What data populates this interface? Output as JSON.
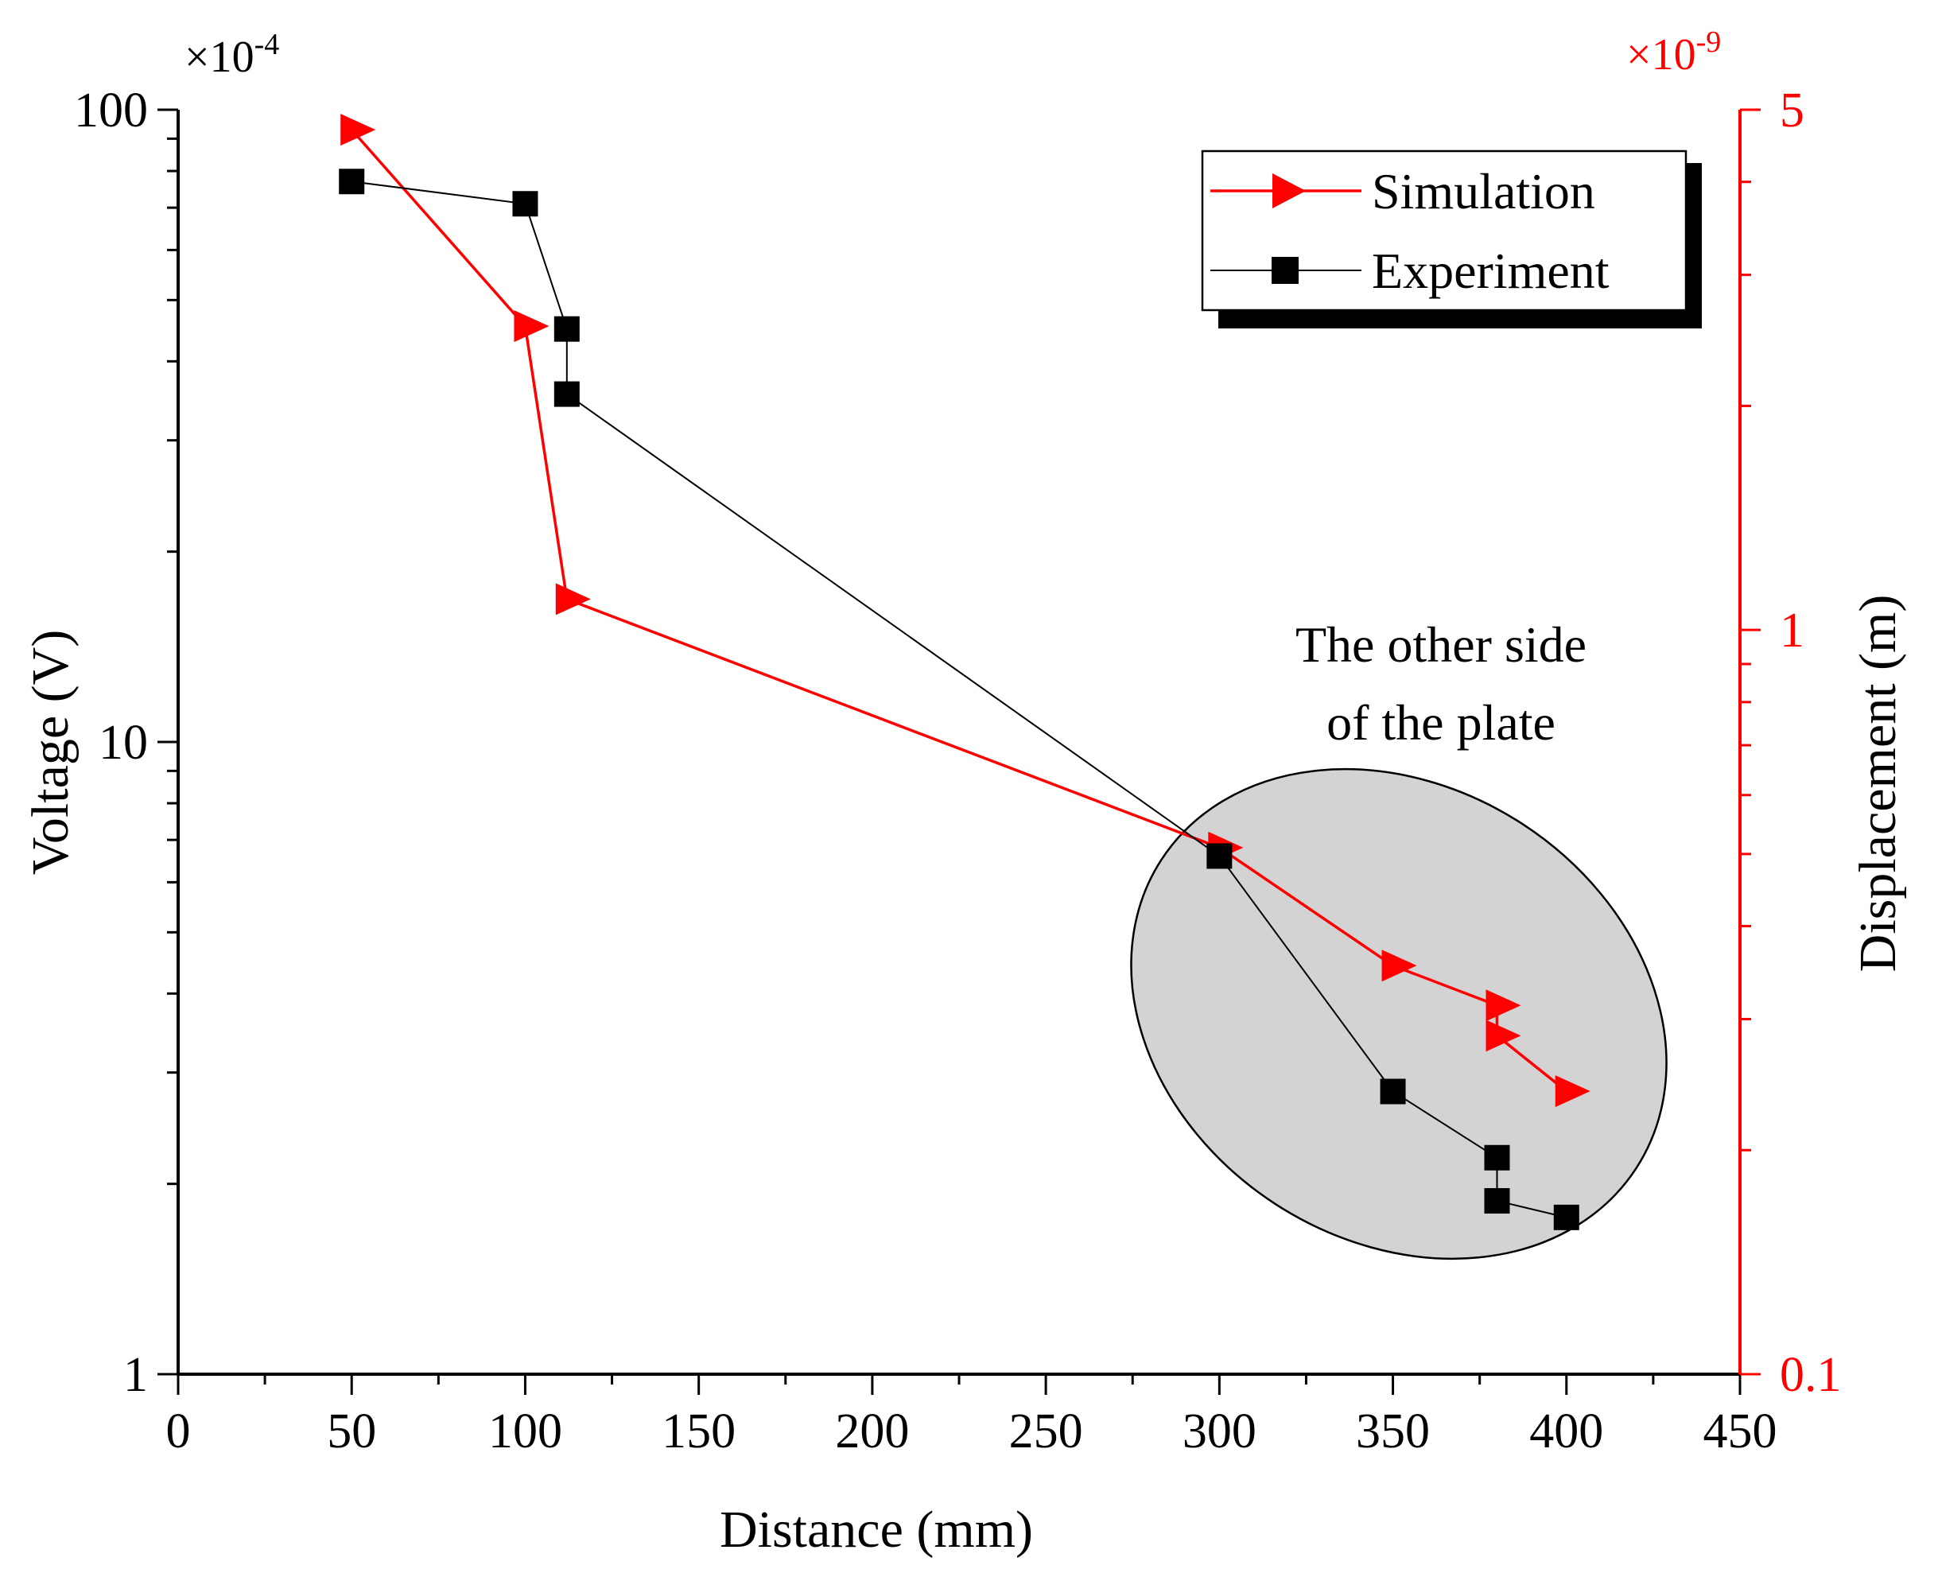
{
  "chart_data": {
    "type": "line",
    "xlabel": "Distance (mm)",
    "xlim": [
      0,
      450
    ],
    "x_ticks": [
      "0",
      "50",
      "100",
      "150",
      "200",
      "250",
      "300",
      "350",
      "400",
      "450"
    ],
    "left_axis": {
      "label": "Voltage (V)",
      "scale": "log",
      "multiplier_base": "×10",
      "multiplier_exp": "-4",
      "lim": [
        1,
        100
      ],
      "ticks": [
        {
          "v": 1,
          "label": "1"
        },
        {
          "v": 10,
          "label": "10"
        },
        {
          "v": 100,
          "label": "100"
        }
      ]
    },
    "right_axis": {
      "label": "Displacement (m)",
      "scale": "log",
      "multiplier_base": "×10",
      "multiplier_exp": "-9",
      "lim": [
        0.1,
        5
      ],
      "color": "#ff0000",
      "ticks": [
        {
          "v": 0.1,
          "label": "0.1"
        },
        {
          "v": 1,
          "label": "1"
        },
        {
          "v": 5,
          "label": "5"
        }
      ]
    },
    "series": [
      {
        "name": "Simulation",
        "axis": "right",
        "color": "#ff0000",
        "marker": "triangle-right",
        "x": [
          50,
          100,
          112,
          300,
          350,
          380,
          380,
          400
        ],
        "y": [
          4.7,
          2.56,
          1.1,
          0.51,
          0.354,
          0.313,
          0.285,
          0.24
        ]
      },
      {
        "name": "Experiment",
        "axis": "left",
        "color": "#000000",
        "marker": "square",
        "x": [
          50,
          100,
          112,
          112,
          300,
          350,
          380,
          380,
          400
        ],
        "y": [
          77,
          71,
          45,
          35.5,
          6.6,
          2.8,
          2.2,
          1.88,
          1.77
        ]
      }
    ],
    "legend": {
      "position": "top-right",
      "entries": [
        "Simulation",
        "Experiment"
      ]
    },
    "annotation": {
      "line1": "The other side",
      "line2": "of the plate"
    }
  }
}
